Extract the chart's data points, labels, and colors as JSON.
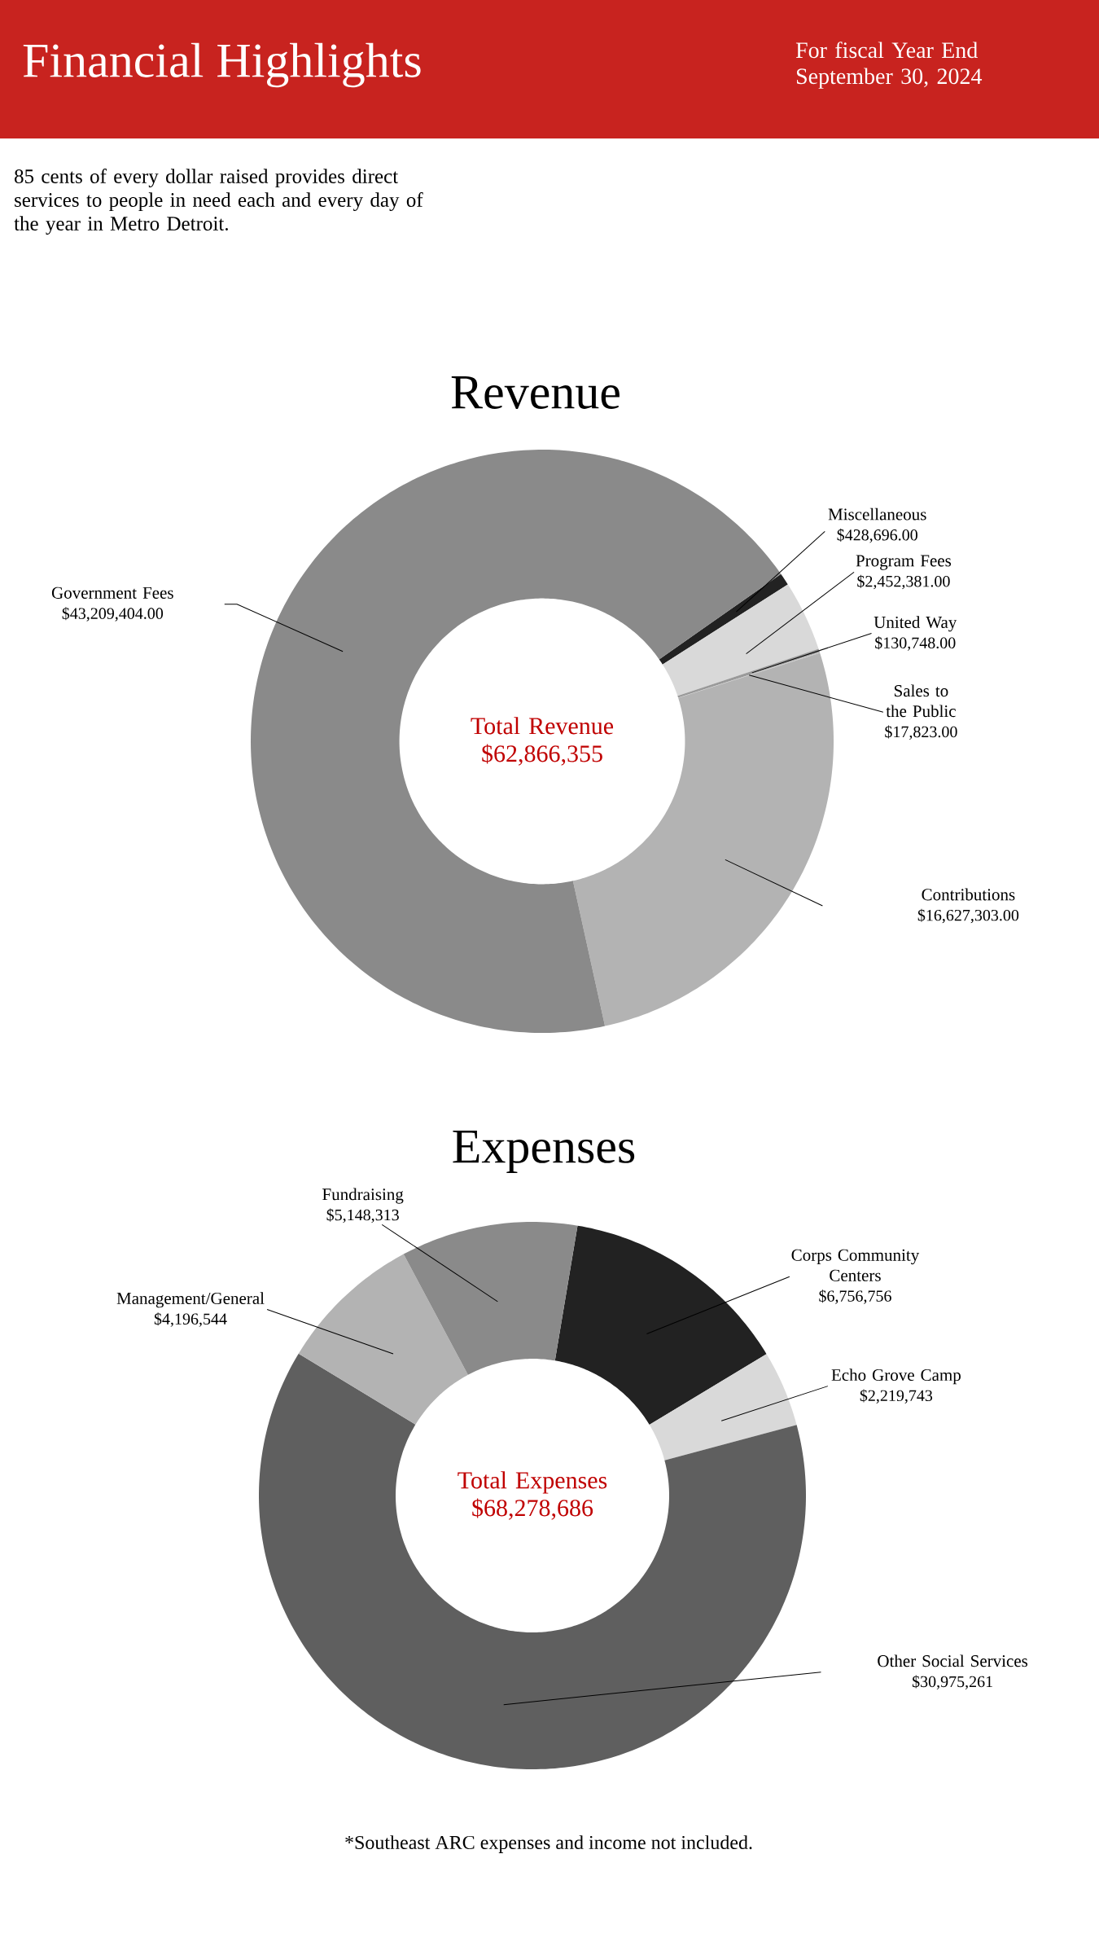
{
  "chart_data": [
    {
      "type": "donut",
      "title": "Revenue",
      "categories": [
        "Miscellaneous",
        "Program Fees",
        "United Way",
        "Sales to the Public",
        "Contributions",
        "Government Fees"
      ],
      "values": [
        428696.0,
        2452381.0,
        130748.0,
        17823.0,
        16627303.0,
        43209404.0
      ],
      "value_labels": [
        "$428,696.00",
        "$2,452,381.00",
        "$130,748.00",
        "$17,823.00",
        "$16,627,303.00",
        "$43,209,404.00"
      ],
      "colors": [
        "#222222",
        "#d9d9d9",
        "#9a9a9a",
        "#c4c4c4",
        "#b3b3b3",
        "#8a8a8a"
      ],
      "annotations": [
        "Financial Highlights",
        "For fiscal Year End September 30, 2024",
        "85 cents of every dollar raised provides direct services to people in need each and every day of the year in Metro Detroit.",
        "Total Revenue $62,866,355"
      ]
    },
    {
      "type": "donut",
      "title": "Expenses",
      "categories": [
        "Corps Community Centers",
        "Echo Grove Camp",
        "Other Social Services",
        "Management/General",
        "Fundraising"
      ],
      "values": [
        6756756,
        2219743,
        30975261,
        4196544,
        5148313
      ],
      "value_labels": [
        "$6,756,756",
        "$2,219,743",
        "$30,975,261",
        "$4,196,544",
        "$5,148,313"
      ],
      "colors": [
        "#222222",
        "#d9d9d9",
        "#5f5f5f",
        "#b3b3b3",
        "#8a8a8a"
      ],
      "annotations": [
        "Total Expenses $68,278,686",
        "*Southeast ARC expenses and income not included."
      ]
    }
  ]
}
